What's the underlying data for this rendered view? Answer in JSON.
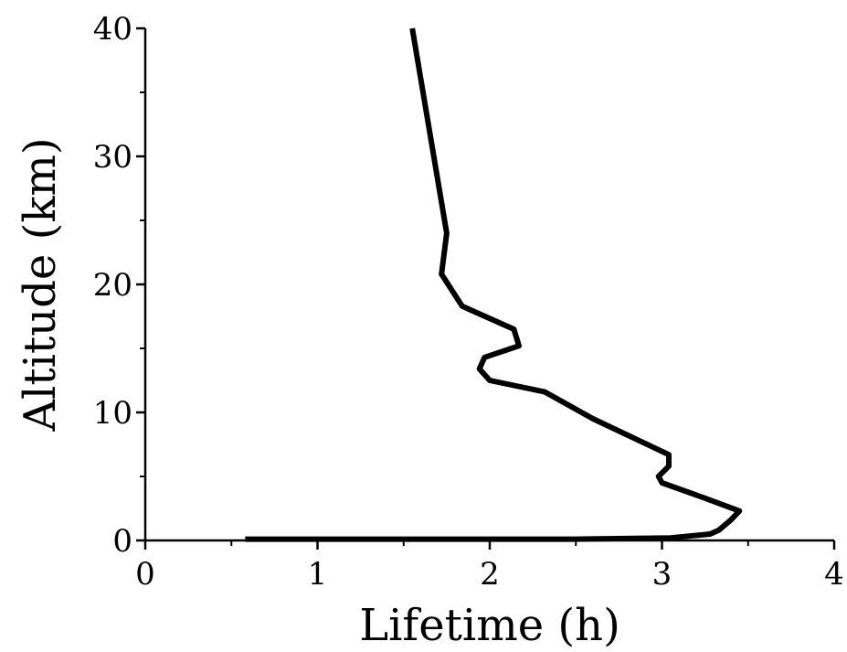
{
  "chart_data": {
    "type": "line",
    "title": "",
    "xlabel": "Lifetime (h)",
    "ylabel": "Altitude (km)",
    "xlim": [
      0,
      4
    ],
    "ylim": [
      0,
      40
    ],
    "xticks": [
      0,
      1,
      2,
      3,
      4
    ],
    "xtick_labels": [
      "0",
      "1",
      "2",
      "3",
      "4"
    ],
    "yticks": [
      0,
      10,
      20,
      30,
      40
    ],
    "ytick_labels": [
      "0",
      "10",
      "20",
      "30",
      "40"
    ],
    "grid": false,
    "legend": "none",
    "series": [
      {
        "color": "#000000",
        "x": [
          0.58,
          2.5,
          3.05,
          3.28,
          3.33,
          3.4,
          3.45,
          3.25,
          3.0,
          2.98,
          3.04,
          3.04,
          2.6,
          2.32,
          2.0,
          1.94,
          1.97,
          2.17,
          2.14,
          1.84,
          1.72,
          1.75,
          1.55
        ],
        "y": [
          0.1,
          0.1,
          0.2,
          0.5,
          0.8,
          1.6,
          2.3,
          3.3,
          4.5,
          5.0,
          5.8,
          6.7,
          9.5,
          11.6,
          12.5,
          13.4,
          14.3,
          15.2,
          16.5,
          18.3,
          20.8,
          24.0,
          40.0
        ]
      }
    ]
  }
}
